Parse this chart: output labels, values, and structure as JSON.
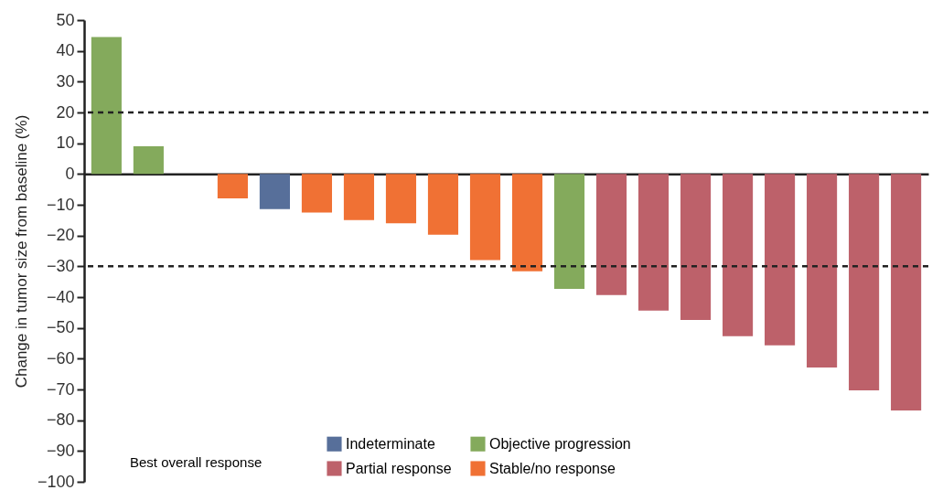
{
  "chart_data": {
    "type": "bar",
    "ylabel": "Change in tumor size from baseline  (%)",
    "legend_title": "Best overall response",
    "categories": [
      null,
      null,
      null,
      null,
      null,
      null,
      null,
      null,
      null,
      null,
      null,
      null,
      null,
      null,
      null,
      null,
      null,
      null,
      null,
      null
    ],
    "series": [
      {
        "name": "Indeterminate",
        "color": "#576f9a",
        "values": [
          null,
          null,
          null,
          null,
          -11.4,
          null,
          null,
          null,
          null,
          null,
          null,
          null,
          null,
          null,
          null,
          null,
          null,
          null,
          null,
          null
        ]
      },
      {
        "name": "Objective progression",
        "color": "#84aa5c",
        "values": [
          44.5,
          9,
          null,
          null,
          null,
          null,
          null,
          null,
          null,
          null,
          null,
          -37.3,
          null,
          null,
          null,
          null,
          null,
          null,
          null,
          null
        ]
      },
      {
        "name": "Partial response",
        "color": "#bd616a",
        "values": [
          null,
          null,
          null,
          null,
          null,
          null,
          null,
          null,
          null,
          null,
          null,
          null,
          -39.3,
          -44.4,
          -47.4,
          -52.7,
          -55.7,
          -62.9,
          -70.3,
          -76.8
        ]
      },
      {
        "name": "Stable/no response",
        "color": "#f07134",
        "values": [
          null,
          null,
          null,
          -7.9,
          null,
          -12.5,
          -15,
          -16,
          -19.7,
          -28,
          -31.6,
          null,
          null,
          null,
          null,
          null,
          null,
          null,
          null,
          null
        ]
      }
    ],
    "ylim": [
      -100,
      50
    ],
    "yticks": [
      -100,
      -90,
      -80,
      -70,
      -60,
      -50,
      -40,
      -30,
      -20,
      -10,
      0,
      10,
      20,
      30,
      40,
      50
    ],
    "ref_lines": [
      {
        "axis": "y",
        "value": 20,
        "color": "#222222",
        "line_style": "dashed"
      },
      {
        "axis": "y",
        "value": -30,
        "color": "#222222",
        "line_style": "dashed"
      }
    ],
    "grid": false,
    "legend": "bottom",
    "tick_labels": "y"
  }
}
